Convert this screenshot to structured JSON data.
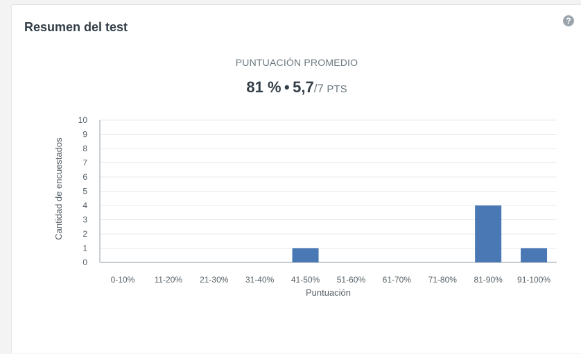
{
  "card": {
    "title": "Resumen del test",
    "help_symbol": "?"
  },
  "summary": {
    "label": "PUNTUACIÓN PROMEDIO",
    "percent": "81 %",
    "separator": "•",
    "points": "5,7",
    "total": "/7",
    "unit": "PTS"
  },
  "chart_data": {
    "type": "bar",
    "categories": [
      "0-10%",
      "11-20%",
      "21-30%",
      "31-40%",
      "41-50%",
      "51-60%",
      "61-70%",
      "71-80%",
      "81-90%",
      "91-100%"
    ],
    "values": [
      0,
      0,
      0,
      0,
      1,
      0,
      0,
      0,
      4,
      1
    ],
    "xlabel": "Puntuación",
    "ylabel": "Cantidad de encuestados",
    "ylim": [
      0,
      10
    ],
    "yticks": [
      "0",
      "1",
      "2",
      "3",
      "4",
      "5",
      "6",
      "7",
      "8",
      "9",
      "10"
    ],
    "grid": true,
    "bar_color": "#4a78b4"
  }
}
